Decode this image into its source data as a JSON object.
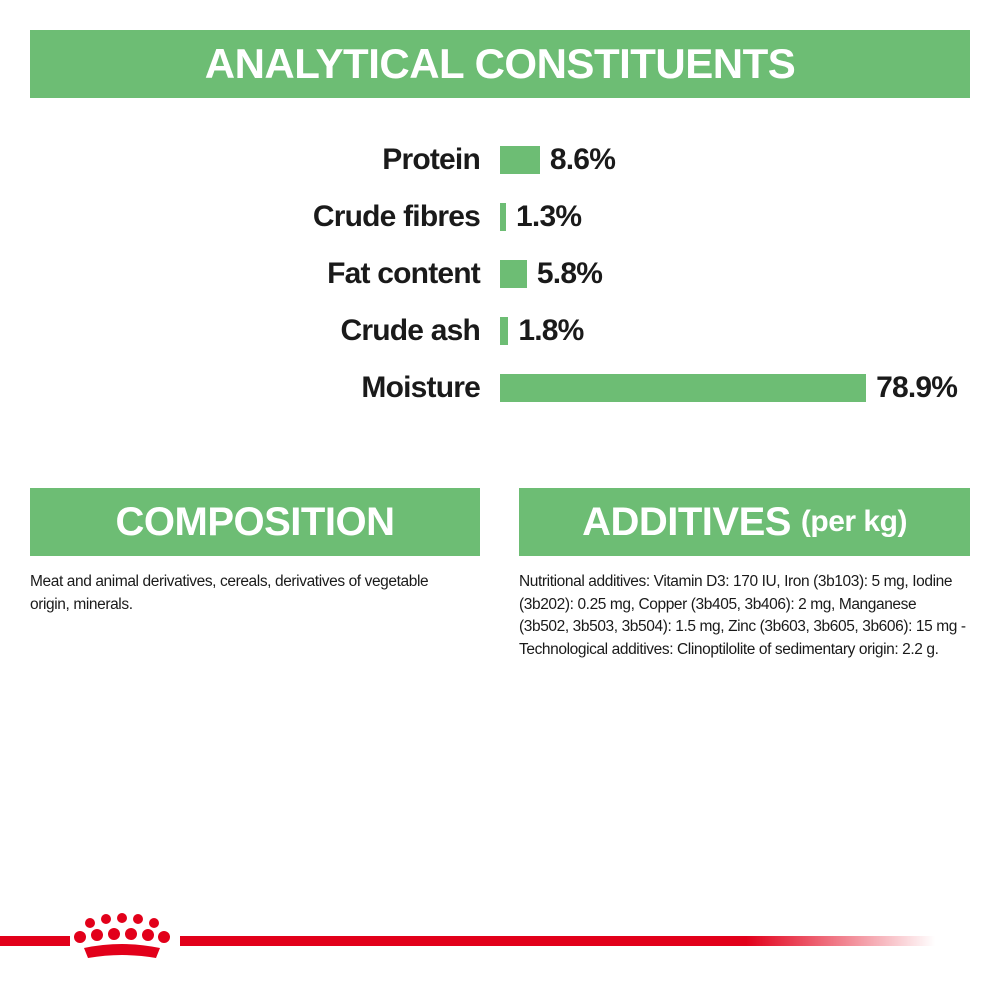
{
  "chart_data": {
    "type": "bar",
    "orientation": "horizontal",
    "title": "ANALYTICAL CONSTITUENTS",
    "categories": [
      "Protein",
      "Crude fibres",
      "Fat content",
      "Crude ash",
      "Moisture"
    ],
    "values": [
      8.6,
      1.3,
      5.8,
      1.8,
      78.9
    ],
    "value_labels": [
      "8.6%",
      "1.3%",
      "5.8%",
      "1.8%",
      "78.9%"
    ],
    "color": "#6dbd74"
  },
  "composition": {
    "title": "COMPOSITION",
    "text": "Meat and animal derivatives, cereals, derivatives of vegetable origin, minerals."
  },
  "additives": {
    "title": "ADDITIVES",
    "subtitle": "(per kg)",
    "text": "Nutritional additives: Vitamin D3: 170 IU, Iron (3b103): 5 mg, Iodine (3b202): 0.25 mg, Copper (3b405, 3b406): 2 mg, Manganese (3b502, 3b503, 3b504): 1.5 mg, Zinc (3b603, 3b605, 3b606): 15 mg - Technological additives: Clinoptilolite of sedimentary origin: 2.2 g."
  }
}
